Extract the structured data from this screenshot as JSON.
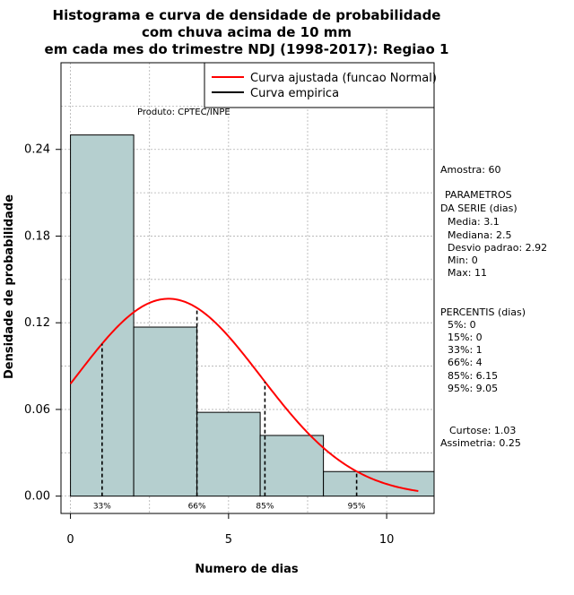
{
  "chart_data": {
    "type": "bar",
    "title_lines": [
      "Histograma e curva de densidade de probabilidade",
      "com chuva acima de 10 mm",
      "em cada mes do trimestre NDJ (1998-2017): Regiao 1"
    ],
    "xlabel": "Numero de dias",
    "ylabel": "Densidade de probabilidade",
    "xlim": [
      -0.3,
      11.5
    ],
    "ylim": [
      -0.012,
      0.3
    ],
    "x_ticks": [
      0,
      5,
      10
    ],
    "y_ticks": [
      0.0,
      0.06,
      0.12,
      0.18,
      0.24
    ],
    "y_tick_labels": [
      "0.00",
      "0.06",
      "0.12",
      "0.18",
      "0.24"
    ],
    "bins": [
      {
        "x0": 0,
        "x1": 2,
        "density": 0.25
      },
      {
        "x0": 2,
        "x1": 4,
        "density": 0.117
      },
      {
        "x0": 4,
        "x1": 6,
        "density": 0.058
      },
      {
        "x0": 6,
        "x1": 8,
        "density": 0.042
      },
      {
        "x0": 8,
        "x1": 11.5,
        "density": 0.017
      }
    ],
    "normal_fit": {
      "mean": 3.1,
      "sd": 2.92,
      "x_from": 0,
      "x_to": 11
    },
    "percentile_lines": [
      {
        "label": "33%",
        "x": 1
      },
      {
        "label": "66%",
        "x": 4
      },
      {
        "label": "85%",
        "x": 6.15
      },
      {
        "label": "95%",
        "x": 9.05
      }
    ],
    "legend": [
      {
        "label": "Curva ajustada (funcao Normal)",
        "color": "#ff0000"
      },
      {
        "label": "Curva empirica",
        "color": "#000000"
      }
    ],
    "source_note": "Produto: CPTEC/INPE",
    "colors": {
      "bar_fill": "#b5cfcf",
      "curve": "#ff0000",
      "grid": "#b0b0b0",
      "axis": "#000000"
    }
  },
  "stats_panel": {
    "amostra": "Amostra: 60",
    "params_header_1": "PARAMETROS",
    "params_header_2": "DA SERIE (dias)",
    "media": "Media: 3.1",
    "mediana": "Mediana: 2.5",
    "desvio": "Desvio padrao: 2.92",
    "min": "Min: 0",
    "max": "Max: 11",
    "percentis_header": "PERCENTIS (dias)",
    "p5": "5%: 0",
    "p15": "15%: 0",
    "p33": "33%: 1",
    "p66": "66%: 4",
    "p85": "85%: 6.15",
    "p95": "95%: 9.05",
    "curtose": "Curtose: 1.03",
    "assimetria": "Assimetria: 0.25"
  }
}
